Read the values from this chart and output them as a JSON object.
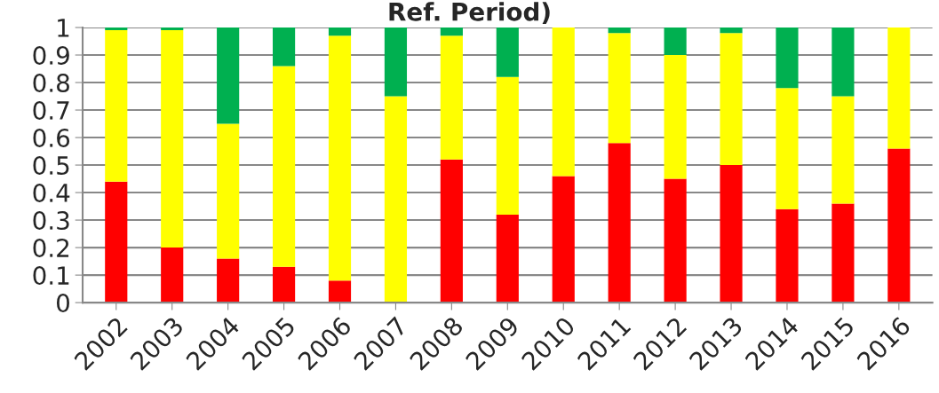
{
  "chart_data": {
    "type": "bar",
    "title": "Ref. Period)",
    "stacked": true,
    "categories": [
      "2002",
      "2003",
      "2004",
      "2005",
      "2006",
      "2007",
      "2008",
      "2009",
      "2010",
      "2011",
      "2012",
      "2013",
      "2014",
      "2015",
      "2016"
    ],
    "series": [
      {
        "color": "#ff0000",
        "values": [
          0.44,
          0.2,
          0.16,
          0.13,
          0.08,
          0,
          0.52,
          0.32,
          0.46,
          0.58,
          0.45,
          0.5,
          0.34,
          0.36,
          0.56
        ]
      },
      {
        "color": "#ffff00",
        "values": [
          0.55,
          0.79,
          0.49,
          0.73,
          0.89,
          0.75,
          0.45,
          0.5,
          0.54,
          0.4,
          0.45,
          0.48,
          0.44,
          0.39,
          0.44
        ]
      },
      {
        "color": "#00b050",
        "values": [
          0.01,
          0.01,
          0.35,
          0.14,
          0.03,
          0.25,
          0.03,
          0.18,
          0,
          0.02,
          0.1,
          0.02,
          0.22,
          0.25,
          0
        ]
      }
    ],
    "ylim": [
      0,
      1
    ],
    "yticks": [
      0,
      0.1,
      0.2,
      0.3,
      0.4,
      0.5,
      0.6,
      0.7,
      0.8,
      0.9,
      1
    ],
    "grid": "y",
    "legend": false
  }
}
